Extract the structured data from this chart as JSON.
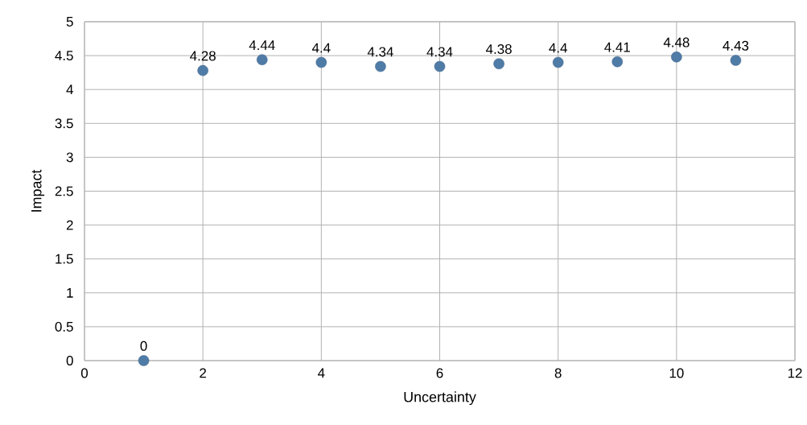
{
  "chart_data": {
    "type": "scatter",
    "xlabel": "Uncertainty",
    "ylabel": "Impact",
    "x": [
      1,
      2,
      3,
      4,
      5,
      6,
      7,
      8,
      9,
      10,
      11
    ],
    "values": [
      0,
      4.28,
      4.44,
      4.4,
      4.34,
      4.34,
      4.38,
      4.4,
      4.41,
      4.48,
      4.43
    ],
    "value_labels": [
      "0",
      "4.28",
      "4.44",
      "4.4",
      "4.34",
      "4.34",
      "4.38",
      "4.4",
      "4.41",
      "4.48",
      "4.43"
    ],
    "color": "#4f7ba7",
    "marker": "circle",
    "grid": true,
    "xlim": [
      0,
      12
    ],
    "xticks": [
      0,
      2,
      4,
      6,
      8,
      10,
      12
    ],
    "ylim": [
      0,
      5
    ],
    "yticks": [
      0,
      0.5,
      1,
      1.5,
      2,
      2.5,
      3,
      3.5,
      4,
      4.5,
      5
    ]
  }
}
